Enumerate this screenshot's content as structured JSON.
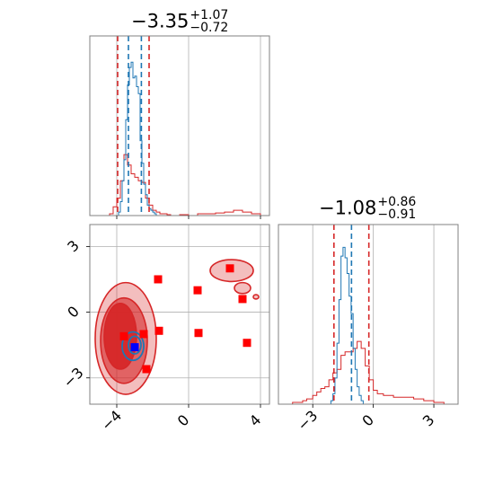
{
  "colors": {
    "prior": "#d62728",
    "posterior": "#1f77b4",
    "axes_frame": "#808080",
    "grid": "#b0b0b0",
    "marker_red": "#ff0000",
    "marker_blue": "#0000ff"
  },
  "titles": {
    "param1": {
      "value": "−3.35",
      "upper": "+1.07",
      "lower": "−0.72"
    },
    "param2": {
      "value": "−1.08",
      "upper": "+0.86",
      "lower": "−0.91"
    }
  },
  "chart_data": [
    {
      "panel": "marginal-param1",
      "type": "area",
      "xlim": [
        -5.5,
        4.5
      ],
      "grid": true,
      "xticks": [
        -4,
        0,
        4
      ],
      "vlines": {
        "prior": [
          -3.95,
          -2.2
        ],
        "posterior": [
          -3.35,
          -2.63
        ]
      },
      "series": [
        {
          "role": "prior",
          "x": [
            -4.4,
            -4.2,
            -4.0,
            -3.8,
            -3.6,
            -3.4,
            -3.2,
            -3.0,
            -2.8,
            -2.6,
            -2.4,
            -2.2,
            -2.0,
            -1.8,
            -1.6,
            -1.4,
            -1.2,
            -1.0,
            -0.5,
            0,
            0.5,
            1.0,
            1.5,
            2.0,
            2.5,
            3.0,
            3.5,
            4.0
          ],
          "values": [
            0.01,
            0.05,
            0.1,
            0.2,
            0.35,
            0.29,
            0.24,
            0.22,
            0.2,
            0.19,
            0.1,
            0.06,
            0.03,
            0.02,
            0.01,
            0.01,
            0.005,
            0.0,
            0.005,
            0.0,
            0.01,
            0.01,
            0.015,
            0.02,
            0.03,
            0.02,
            0.01,
            0.0
          ]
        },
        {
          "role": "posterior",
          "x": [
            -4.0,
            -3.9,
            -3.8,
            -3.7,
            -3.6,
            -3.5,
            -3.4,
            -3.3,
            -3.2,
            -3.1,
            -3.0,
            -2.9,
            -2.8,
            -2.7,
            -2.6,
            -2.5,
            -2.4,
            -2.3,
            -2.2,
            -2.1,
            -2.0,
            -1.9,
            -1.8
          ],
          "values": [
            0.0,
            0.02,
            0.08,
            0.2,
            0.32,
            0.55,
            0.75,
            0.85,
            0.88,
            0.79,
            0.8,
            0.74,
            0.7,
            0.43,
            0.3,
            0.18,
            0.12,
            0.06,
            0.04,
            0.03,
            0.02,
            0.01,
            0.0
          ]
        }
      ]
    },
    {
      "panel": "marginal-param2",
      "type": "area",
      "xlim": [
        -4.7,
        4.2
      ],
      "grid": true,
      "xticks": [
        -3,
        0,
        3
      ],
      "vlines": {
        "prior": [
          -1.95,
          -0.22
        ],
        "posterior": [
          -1.08,
          -1.08
        ]
      },
      "series": [
        {
          "role": "prior",
          "x": [
            -4.5,
            -4.0,
            -3.5,
            -3.3,
            -3.0,
            -2.8,
            -2.6,
            -2.4,
            -2.2,
            -2.0,
            -1.8,
            -1.6,
            -1.4,
            -1.2,
            -1.0,
            -0.8,
            -0.6,
            -0.4,
            -0.2,
            0,
            0.2,
            0.5,
            1.0,
            1.5,
            2.0,
            2.5,
            3.0,
            3.5
          ],
          "values": [
            0.0,
            0.01,
            0.02,
            0.03,
            0.05,
            0.07,
            0.09,
            0.1,
            0.14,
            0.18,
            0.2,
            0.28,
            0.3,
            0.3,
            0.32,
            0.36,
            0.32,
            0.22,
            0.14,
            0.08,
            0.06,
            0.05,
            0.04,
            0.04,
            0.03,
            0.02,
            0.01,
            0.0
          ]
        },
        {
          "role": "posterior",
          "x": [
            -2.2,
            -2.1,
            -2.0,
            -1.9,
            -1.8,
            -1.7,
            -1.6,
            -1.5,
            -1.4,
            -1.3,
            -1.2,
            -1.1,
            -1.0,
            -0.9,
            -0.8,
            -0.7,
            -0.6,
            -0.5
          ],
          "values": [
            0.0,
            0.02,
            0.06,
            0.15,
            0.35,
            0.6,
            0.85,
            0.9,
            0.84,
            0.75,
            0.62,
            0.52,
            0.32,
            0.2,
            0.1,
            0.05,
            0.02,
            0.0
          ]
        }
      ]
    },
    {
      "panel": "joint",
      "type": "scatter",
      "xlim": [
        -5.5,
        4.5
      ],
      "ylim": [
        -4.2,
        4.0
      ],
      "grid": true,
      "xticks": [
        -4,
        0,
        4
      ],
      "yticks": [
        -3,
        0,
        3
      ],
      "prior_contours": [
        {
          "level": 0.39,
          "cx": -3.8,
          "cy": -1.1,
          "rx": 0.9,
          "ry": 1.5
        },
        {
          "level": 0.86,
          "cx": -3.6,
          "cy": -1.3,
          "rx": 1.3,
          "ry": 1.95
        },
        {
          "level": 0.99,
          "cx": -3.5,
          "cy": -1.2,
          "rx": 1.7,
          "ry": 2.55
        }
      ],
      "prior_islands": [
        {
          "cx": 2.4,
          "cy": 1.9,
          "rx": 1.2,
          "ry": 0.5
        },
        {
          "cx": 3.0,
          "cy": 1.1,
          "rx": 0.45,
          "ry": 0.25
        },
        {
          "cx": 3.75,
          "cy": 0.7,
          "rx": 0.15,
          "ry": 0.1
        }
      ],
      "posterior_contours": [
        {
          "cx": -3.0,
          "cy": -1.5,
          "rx": 0.35,
          "ry": 0.4
        },
        {
          "cx": -3.1,
          "cy": -1.55,
          "rx": 0.6,
          "ry": 0.65
        }
      ],
      "red_points": [
        {
          "x": -1.7,
          "y": 1.5
        },
        {
          "x": 0.5,
          "y": 1.0
        },
        {
          "x": 2.3,
          "y": 2.0
        },
        {
          "x": 3.0,
          "y": 0.6
        },
        {
          "x": -3.6,
          "y": -1.1
        },
        {
          "x": -2.5,
          "y": -1.0
        },
        {
          "x": -1.65,
          "y": -0.85
        },
        {
          "x": 0.55,
          "y": -0.95
        },
        {
          "x": 3.25,
          "y": -1.4
        },
        {
          "x": -2.35,
          "y": -2.6
        }
      ],
      "blue_points": [
        {
          "x": -3.0,
          "y": -1.6
        }
      ]
    }
  ]
}
